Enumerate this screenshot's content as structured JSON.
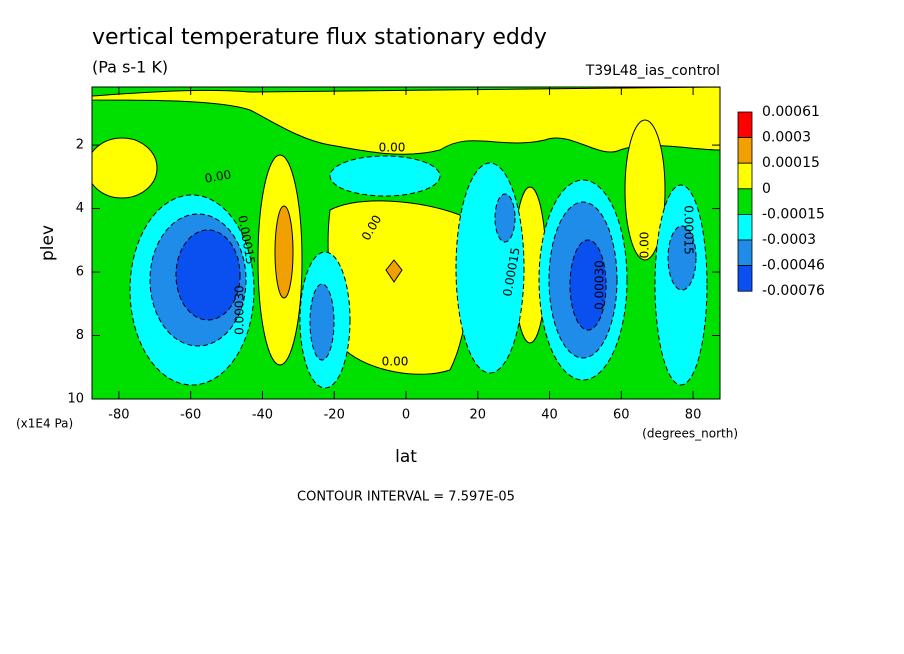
{
  "chart_data": {
    "type": "contour",
    "title": "vertical temperature flux stationary eddy",
    "subtitle": "(Pa s-1 K)",
    "dataset": "T39L48_ias_control",
    "x_label": "lat",
    "x_units": "(degrees_north)",
    "y_label": "plev",
    "y_units": "(x1E4 Pa)",
    "xlim": [
      -87.5,
      87.5
    ],
    "xticks": [
      -80,
      -60,
      -40,
      -20,
      0,
      20,
      40,
      60,
      80
    ],
    "ylim": [
      10,
      0.17
    ],
    "yticks": [
      2,
      4,
      6,
      8,
      10
    ],
    "levels": [
      0.00061,
      0.0003,
      0.00015,
      0,
      -0.00015,
      -0.0003,
      -0.00046,
      -0.00076
    ],
    "level_colors": [
      "#ff0000",
      "#f0a000",
      "#ffff00",
      "#00e000",
      "#00ffff",
      "#1e8ce8",
      "#0a50f0"
    ],
    "contour_labels": [
      "0.00",
      "0.00",
      "0.00",
      "0.00",
      "0.00015",
      "0.00030",
      "0.00015",
      "0.00030",
      "0.00015",
      "0.00"
    ],
    "footnote": "CONTOUR INTERVAL = 7.597E-05"
  }
}
